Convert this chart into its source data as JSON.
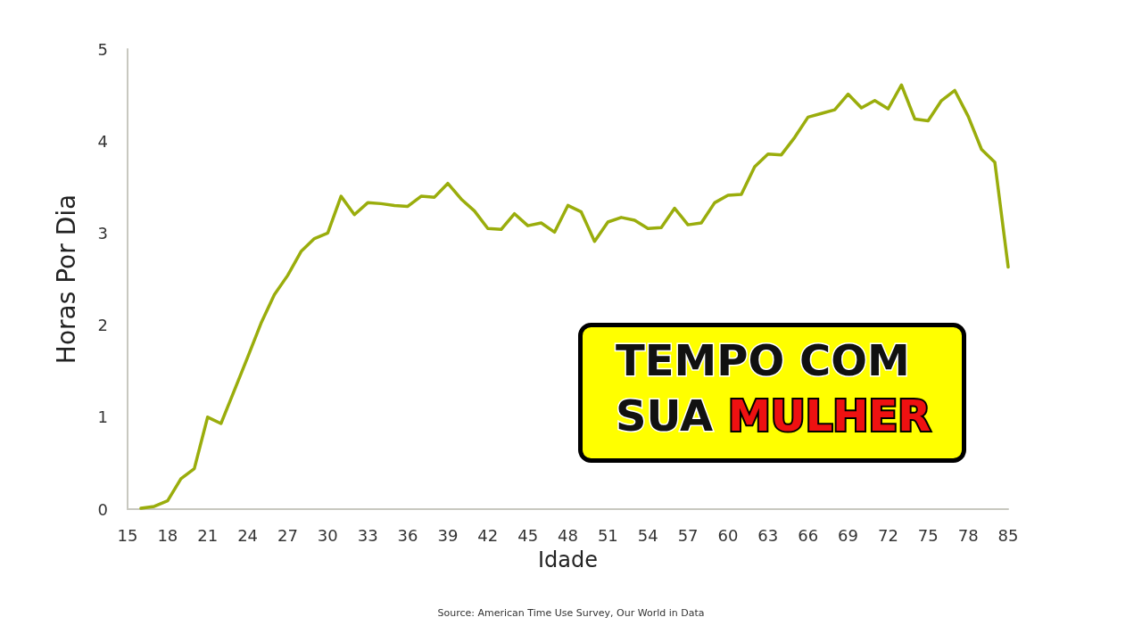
{
  "chart_data": {
    "type": "line",
    "xlabel": "Idade",
    "ylabel": "Horas Por Dia",
    "categories": [
      "15",
      null,
      null,
      "18",
      null,
      null,
      "21",
      null,
      null,
      "24",
      null,
      null,
      "27",
      null,
      null,
      "30",
      null,
      null,
      "33",
      null,
      null,
      "36",
      null,
      null,
      "39",
      null,
      null,
      "42",
      null,
      null,
      "45",
      null,
      null,
      "48",
      null,
      null,
      "51",
      null,
      null,
      "54",
      null,
      null,
      "57",
      null,
      null,
      "60",
      null,
      null,
      "63",
      null,
      null,
      "66",
      null,
      null,
      "69",
      null,
      null,
      "72",
      null,
      null,
      "75",
      null,
      null,
      "78",
      null,
      null,
      "85"
    ],
    "series": [
      {
        "color": "#9aad0c",
        "values": [
          null,
          0.01,
          0.03,
          0.09,
          0.33,
          0.44,
          1.0,
          0.93,
          1.29,
          1.65,
          2.02,
          2.33,
          2.54,
          2.8,
          2.94,
          3.0,
          3.4,
          3.2,
          3.33,
          3.32,
          3.3,
          3.29,
          3.4,
          3.39,
          3.54,
          3.37,
          3.24,
          3.05,
          3.04,
          3.21,
          3.08,
          3.11,
          3.01,
          3.3,
          3.23,
          2.91,
          3.12,
          3.17,
          3.14,
          3.05,
          3.06,
          3.27,
          3.09,
          3.11,
          3.33,
          3.41,
          3.42,
          3.72,
          3.86,
          3.85,
          4.04,
          4.26,
          4.3,
          4.34,
          4.51,
          4.36,
          4.44,
          4.35,
          4.61,
          4.24,
          4.22,
          4.44,
          4.55,
          4.27,
          3.91,
          3.77,
          2.63
        ]
      }
    ],
    "ylim": [
      0,
      5
    ],
    "yticks": [
      0,
      1,
      2,
      3,
      4,
      5
    ],
    "grid": false,
    "marker": "none",
    "line_style": "solid",
    "annotations": [
      "TEMPO COM SUA MULHER",
      "Source: American Time Use Survey, Our World in Data"
    ]
  }
}
